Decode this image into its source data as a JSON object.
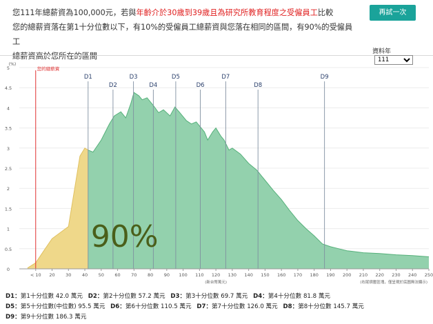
{
  "summary": {
    "line1_a": "您111年總薪資為100,000元，若與",
    "line1_hl": "年齡介於30歲到39歲且為研究所教育程度之受僱員工",
    "line1_b": "比較",
    "line2": "您的總薪資落在第1十分位數以下，有10%的受僱員工總薪資與您落在相同的區間，有90%的受僱員工",
    "line3": "總薪資高於您所在的區間"
  },
  "retry_button": "再試一次",
  "year_selector": {
    "label": "資料年",
    "value": "111"
  },
  "chart_data": {
    "type": "area",
    "y_unit_label": "(%)",
    "x_unit_label": "(新台幣萬元)",
    "x_note": "(右尾擠壓區塊，僅呈現於底圖無法顯示)",
    "ylim": [
      0,
      5
    ],
    "y_ticks": [
      "0",
      "0.5",
      "1",
      "1.5",
      "2",
      "2.5",
      "3",
      "3.5",
      "4",
      "4.5",
      "5"
    ],
    "xlim": [
      0,
      250
    ],
    "x_ticks": [
      "< 10",
      "20",
      "30",
      "40",
      "50",
      "60",
      "70",
      "80",
      "90",
      "100",
      "110",
      "120",
      "130",
      "140",
      "150",
      "160",
      "170",
      "180",
      "190",
      "200",
      "210",
      "220",
      "230",
      "240",
      "250"
    ],
    "my_salary": {
      "label": "您的總薪資",
      "value": 10
    },
    "deciles": [
      {
        "name": "D1",
        "value": 42.0
      },
      {
        "name": "D2",
        "value": 57.2
      },
      {
        "name": "D3",
        "value": 69.7
      },
      {
        "name": "D4",
        "value": 81.8
      },
      {
        "name": "D5",
        "value": 95.5
      },
      {
        "name": "D6",
        "value": 110.5
      },
      {
        "name": "D7",
        "value": 126.0
      },
      {
        "name": "D8",
        "value": 145.7
      },
      {
        "name": "D9",
        "value": 186.3
      }
    ],
    "big_percent_label": "90%",
    "colors": {
      "below": "#efd88a",
      "above": "#93d1ad",
      "above_line": "#55b07a",
      "below_line": "#e0c060",
      "my_line": "#e03030",
      "decile_line": "#7f8fa0",
      "percent_text": "#4a5f1a"
    },
    "distribution": {
      "x": [
        5,
        10,
        15,
        20,
        25,
        30,
        35,
        37,
        40,
        42,
        45,
        50,
        55,
        58,
        62,
        65,
        68,
        70,
        73,
        75,
        78,
        82,
        85,
        88,
        92,
        95,
        98,
        102,
        105,
        108,
        110,
        113,
        115,
        118,
        120,
        123,
        125,
        128,
        130,
        135,
        140,
        145,
        150,
        155,
        160,
        165,
        170,
        175,
        180,
        185,
        190,
        195,
        200,
        210,
        220,
        230,
        240,
        250
      ],
      "y": [
        0.02,
        0.15,
        0.45,
        0.75,
        0.9,
        1.05,
        2.3,
        2.8,
        3.0,
        2.95,
        2.9,
        3.2,
        3.6,
        3.8,
        3.9,
        3.75,
        4.1,
        4.38,
        4.3,
        4.2,
        4.25,
        4.05,
        3.88,
        3.95,
        3.8,
        4.02,
        3.88,
        3.68,
        3.6,
        3.65,
        3.55,
        3.4,
        3.2,
        3.4,
        3.5,
        3.3,
        3.2,
        2.95,
        3.0,
        2.85,
        2.62,
        2.45,
        2.2,
        1.95,
        1.72,
        1.45,
        1.2,
        1.0,
        0.82,
        0.62,
        0.55,
        0.5,
        0.45,
        0.4,
        0.38,
        0.35,
        0.33,
        0.3
      ]
    }
  },
  "legend": [
    {
      "key": "D1",
      "text": "第1十分位數 42.0 萬元"
    },
    {
      "key": "D2",
      "text": "第2十分位數 57.2 萬元"
    },
    {
      "key": "D3",
      "text": "第3十分位數 69.7 萬元"
    },
    {
      "key": "D4",
      "text": "第4十分位數 81.8 萬元"
    },
    {
      "key": "D5",
      "text": "第5十分位數(中位數) 95.5 萬元"
    },
    {
      "key": "D6",
      "text": "第6十分位數 110.5 萬元"
    },
    {
      "key": "D7",
      "text": "第7十分位數 126.0 萬元"
    },
    {
      "key": "D8",
      "text": "第8十分位數 145.7 萬元"
    },
    {
      "key": "D9",
      "text": "第9十分位數 186.3 萬元"
    }
  ]
}
